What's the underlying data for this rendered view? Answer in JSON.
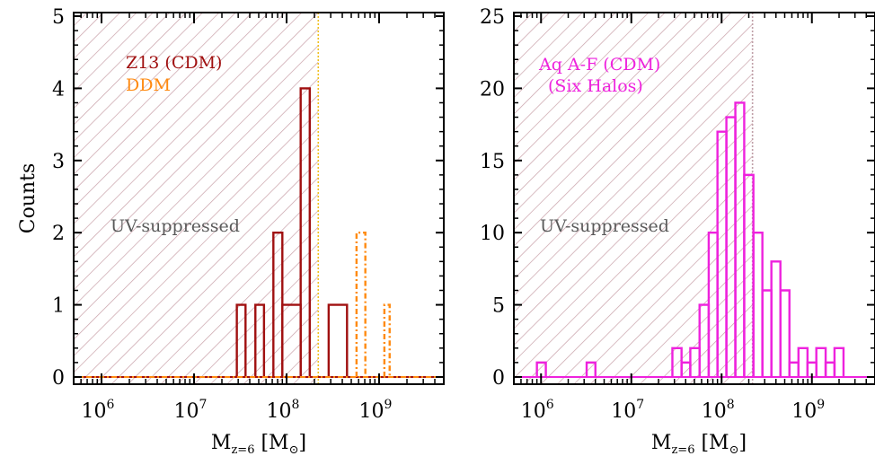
{
  "colors": {
    "z13": "#a01010",
    "ddm": "#ff8a10",
    "aq": "#ee22dd",
    "hatch": "#c8a0a8",
    "cutoff_left": "#f0c020",
    "cutoff_right": "#c0a0a8",
    "region_text": "#5a5a5a"
  },
  "chart_data": [
    {
      "type": "histogram",
      "panel": "left",
      "xlabel": "M_{z=6} [M_⊙]",
      "xlabel_main": "M",
      "xlabel_sub": "z=6",
      "xlabel_unit_open": " [M",
      "xlabel_unit_sub": "⊙",
      "xlabel_unit_close": "]",
      "ylabel": "Counts",
      "xscale": "log",
      "xlim": [
        500000.0,
        5000000000.0
      ],
      "ylim": [
        -0.1,
        5.05
      ],
      "xticks": [
        {
          "base": "10",
          "exp": "6",
          "value": 1000000.0
        },
        {
          "base": "10",
          "exp": "7",
          "value": 10000000.0
        },
        {
          "base": "10",
          "exp": "8",
          "value": 100000000.0
        },
        {
          "base": "10",
          "exp": "9",
          "value": 1000000000.0
        }
      ],
      "yticks": [
        "0",
        "1",
        "2",
        "3",
        "4",
        "5"
      ],
      "shaded_region": {
        "label": "UV-suppressed",
        "xmax": 220000000.0
      },
      "legend": [
        {
          "text": "Z13 (CDM)",
          "series": 0
        },
        {
          "text": "DDM",
          "series": 1
        }
      ],
      "series": [
        {
          "name": "Z13 (CDM)",
          "style": "solid",
          "bins": [
            {
              "x0": 29000000.0,
              "x1": 36000000.0,
              "y": 1
            },
            {
              "x0": 46000000.0,
              "x1": 57000000.0,
              "y": 1
            },
            {
              "x0": 72000000.0,
              "x1": 90000000.0,
              "y": 2
            },
            {
              "x0": 90000000.0,
              "x1": 142000000.0,
              "y": 1
            },
            {
              "x0": 142000000.0,
              "x1": 178000000.0,
              "y": 4
            },
            {
              "x0": 285000000.0,
              "x1": 450000000.0,
              "y": 1
            }
          ]
        },
        {
          "name": "DDM",
          "style": "dashdot",
          "bins": [
            {
              "x0": 570000000.0,
              "x1": 710000000.0,
              "y": 2
            },
            {
              "x0": 1140000000.0,
              "x1": 1300000000.0,
              "y": 1
            }
          ]
        }
      ]
    },
    {
      "type": "histogram",
      "panel": "right",
      "xlabel": "M_{z=6} [M_⊙]",
      "xlabel_main": "M",
      "xlabel_sub": "z=6",
      "xlabel_unit_open": " [M",
      "xlabel_unit_sub": "⊙",
      "xlabel_unit_close": "]",
      "ylabel": "",
      "xscale": "log",
      "xlim": [
        500000.0,
        5000000000.0
      ],
      "ylim": [
        -0.5,
        25.25
      ],
      "xticks": [
        {
          "base": "10",
          "exp": "6",
          "value": 1000000.0
        },
        {
          "base": "10",
          "exp": "7",
          "value": 10000000.0
        },
        {
          "base": "10",
          "exp": "8",
          "value": 100000000.0
        },
        {
          "base": "10",
          "exp": "9",
          "value": 1000000000.0
        }
      ],
      "yticks": [
        "0",
        "5",
        "10",
        "15",
        "20",
        "25"
      ],
      "shaded_region": {
        "label": "UV-suppressed",
        "xmax": 220000000.0
      },
      "legend": [
        {
          "text": "Aq A-F (CDM)",
          "series": 0
        },
        {
          "text": "(Six Halos)",
          "series": 0
        }
      ],
      "series": [
        {
          "name": "Aq A-F (CDM)",
          "style": "solid",
          "bins": [
            {
              "x0": 900000.0,
              "x1": 1130000.0,
              "y": 1
            },
            {
              "x0": 3200000.0,
              "x1": 4000000.0,
              "y": 1
            },
            {
              "x0": 28500000.0,
              "x1": 36000000.0,
              "y": 2
            },
            {
              "x0": 36000000.0,
              "x1": 45000000.0,
              "y": 1
            },
            {
              "x0": 45000000.0,
              "x1": 57000000.0,
              "y": 2
            },
            {
              "x0": 57000000.0,
              "x1": 72000000.0,
              "y": 5
            },
            {
              "x0": 72000000.0,
              "x1": 90000000.0,
              "y": 10
            },
            {
              "x0": 90000000.0,
              "x1": 113000000.0,
              "y": 17
            },
            {
              "x0": 113000000.0,
              "x1": 142000000.0,
              "y": 18
            },
            {
              "x0": 142000000.0,
              "x1": 178000000.0,
              "y": 19
            },
            {
              "x0": 178000000.0,
              "x1": 225000000.0,
              "y": 14
            },
            {
              "x0": 225000000.0,
              "x1": 283000000.0,
              "y": 10
            },
            {
              "x0": 283000000.0,
              "x1": 356000000.0,
              "y": 6
            },
            {
              "x0": 356000000.0,
              "x1": 448000000.0,
              "y": 8
            },
            {
              "x0": 448000000.0,
              "x1": 564000000.0,
              "y": 6
            },
            {
              "x0": 564000000.0,
              "x1": 710000000.0,
              "y": 1
            },
            {
              "x0": 710000000.0,
              "x1": 894000000.0,
              "y": 2
            },
            {
              "x0": 894000000.0,
              "x1": 1120000000.0,
              "y": 1
            },
            {
              "x0": 1120000000.0,
              "x1": 1420000000.0,
              "y": 2
            },
            {
              "x0": 1420000000.0,
              "x1": 1780000000.0,
              "y": 1
            },
            {
              "x0": 1780000000.0,
              "x1": 2240000000.0,
              "y": 2
            }
          ]
        }
      ]
    }
  ]
}
